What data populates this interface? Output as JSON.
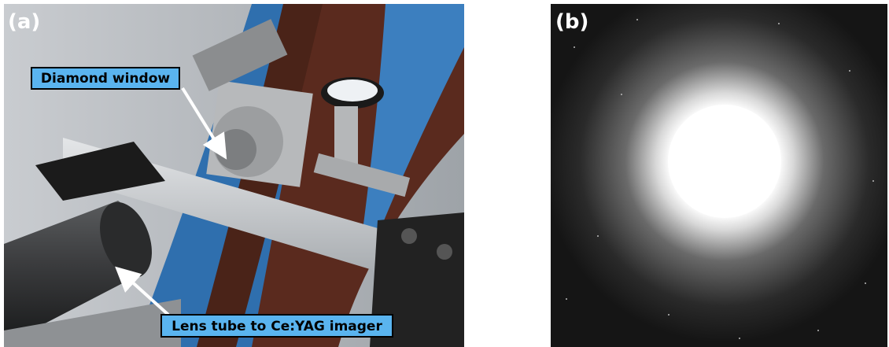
{
  "panels": [
    {
      "label": "(a)",
      "callouts": [
        "Diamond window",
        "Lens tube to Ce:YAG imager"
      ]
    },
    {
      "label": "(b)"
    }
  ]
}
